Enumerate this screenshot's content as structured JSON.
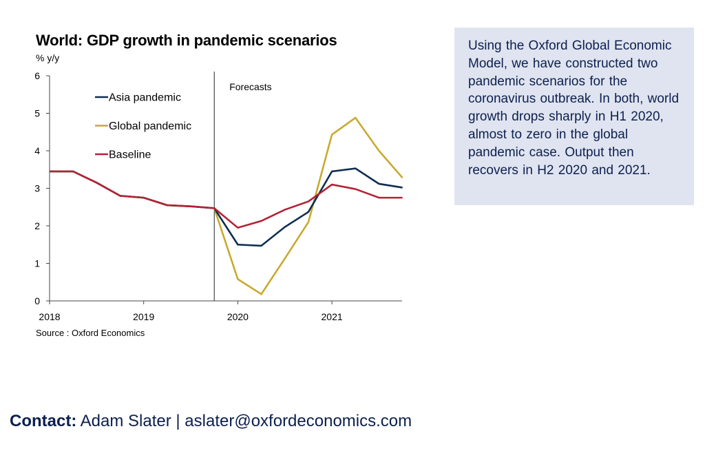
{
  "chart_data": {
    "type": "line",
    "title": "World: GDP growth in pandemic scenarios",
    "ylabel": "% y/y",
    "xlabel": "",
    "ylim": [
      0,
      6
    ],
    "yticks": [
      0,
      1,
      2,
      3,
      4,
      5,
      6
    ],
    "xlim": [
      2018.0,
      2021.75
    ],
    "xticks": [
      2018,
      2019,
      2020,
      2021
    ],
    "xtick_labels": [
      "2018",
      "2019",
      "2020",
      "2021"
    ],
    "grid": false,
    "legend_position": "top-left",
    "annotations": [
      {
        "text": "Forecasts",
        "x": 2019.75,
        "type": "vertical-line"
      }
    ],
    "source": "Source : Oxford Economics",
    "x": [
      2018.0,
      2018.25,
      2018.5,
      2018.75,
      2019.0,
      2019.25,
      2019.5,
      2019.75,
      2020.0,
      2020.25,
      2020.5,
      2020.75,
      2021.0,
      2021.25,
      2021.5,
      2021.75
    ],
    "series": [
      {
        "name": "Asia pandemic",
        "color": "#0f2d52",
        "values": [
          3.45,
          3.45,
          3.15,
          2.8,
          2.75,
          2.55,
          2.52,
          2.47,
          1.5,
          1.47,
          1.97,
          2.37,
          3.45,
          3.53,
          3.12,
          3.02
        ]
      },
      {
        "name": "Global pandemic",
        "color": "#c9a92e",
        "values": [
          3.45,
          3.45,
          3.15,
          2.8,
          2.75,
          2.55,
          2.52,
          2.47,
          0.58,
          0.18,
          1.13,
          2.1,
          4.43,
          4.88,
          4.0,
          3.28
        ]
      },
      {
        "name": "Baseline",
        "color": "#b22234",
        "values": [
          3.45,
          3.45,
          3.15,
          2.8,
          2.75,
          2.55,
          2.52,
          2.47,
          1.95,
          2.13,
          2.43,
          2.65,
          3.1,
          2.98,
          2.75,
          2.75
        ]
      }
    ]
  },
  "note": {
    "text": "Using the Oxford Global Economic Model, we have constructed two pandemic scenarios for the coronavirus outbreak. In both, world growth drops sharply in H1 2020, almost to zero in the global pandemic case. Output then recovers in H2 2020 and 2021."
  },
  "contact": {
    "label": "Contact:",
    "text": " Adam Slater | aslater@oxfordeconomics.com"
  }
}
